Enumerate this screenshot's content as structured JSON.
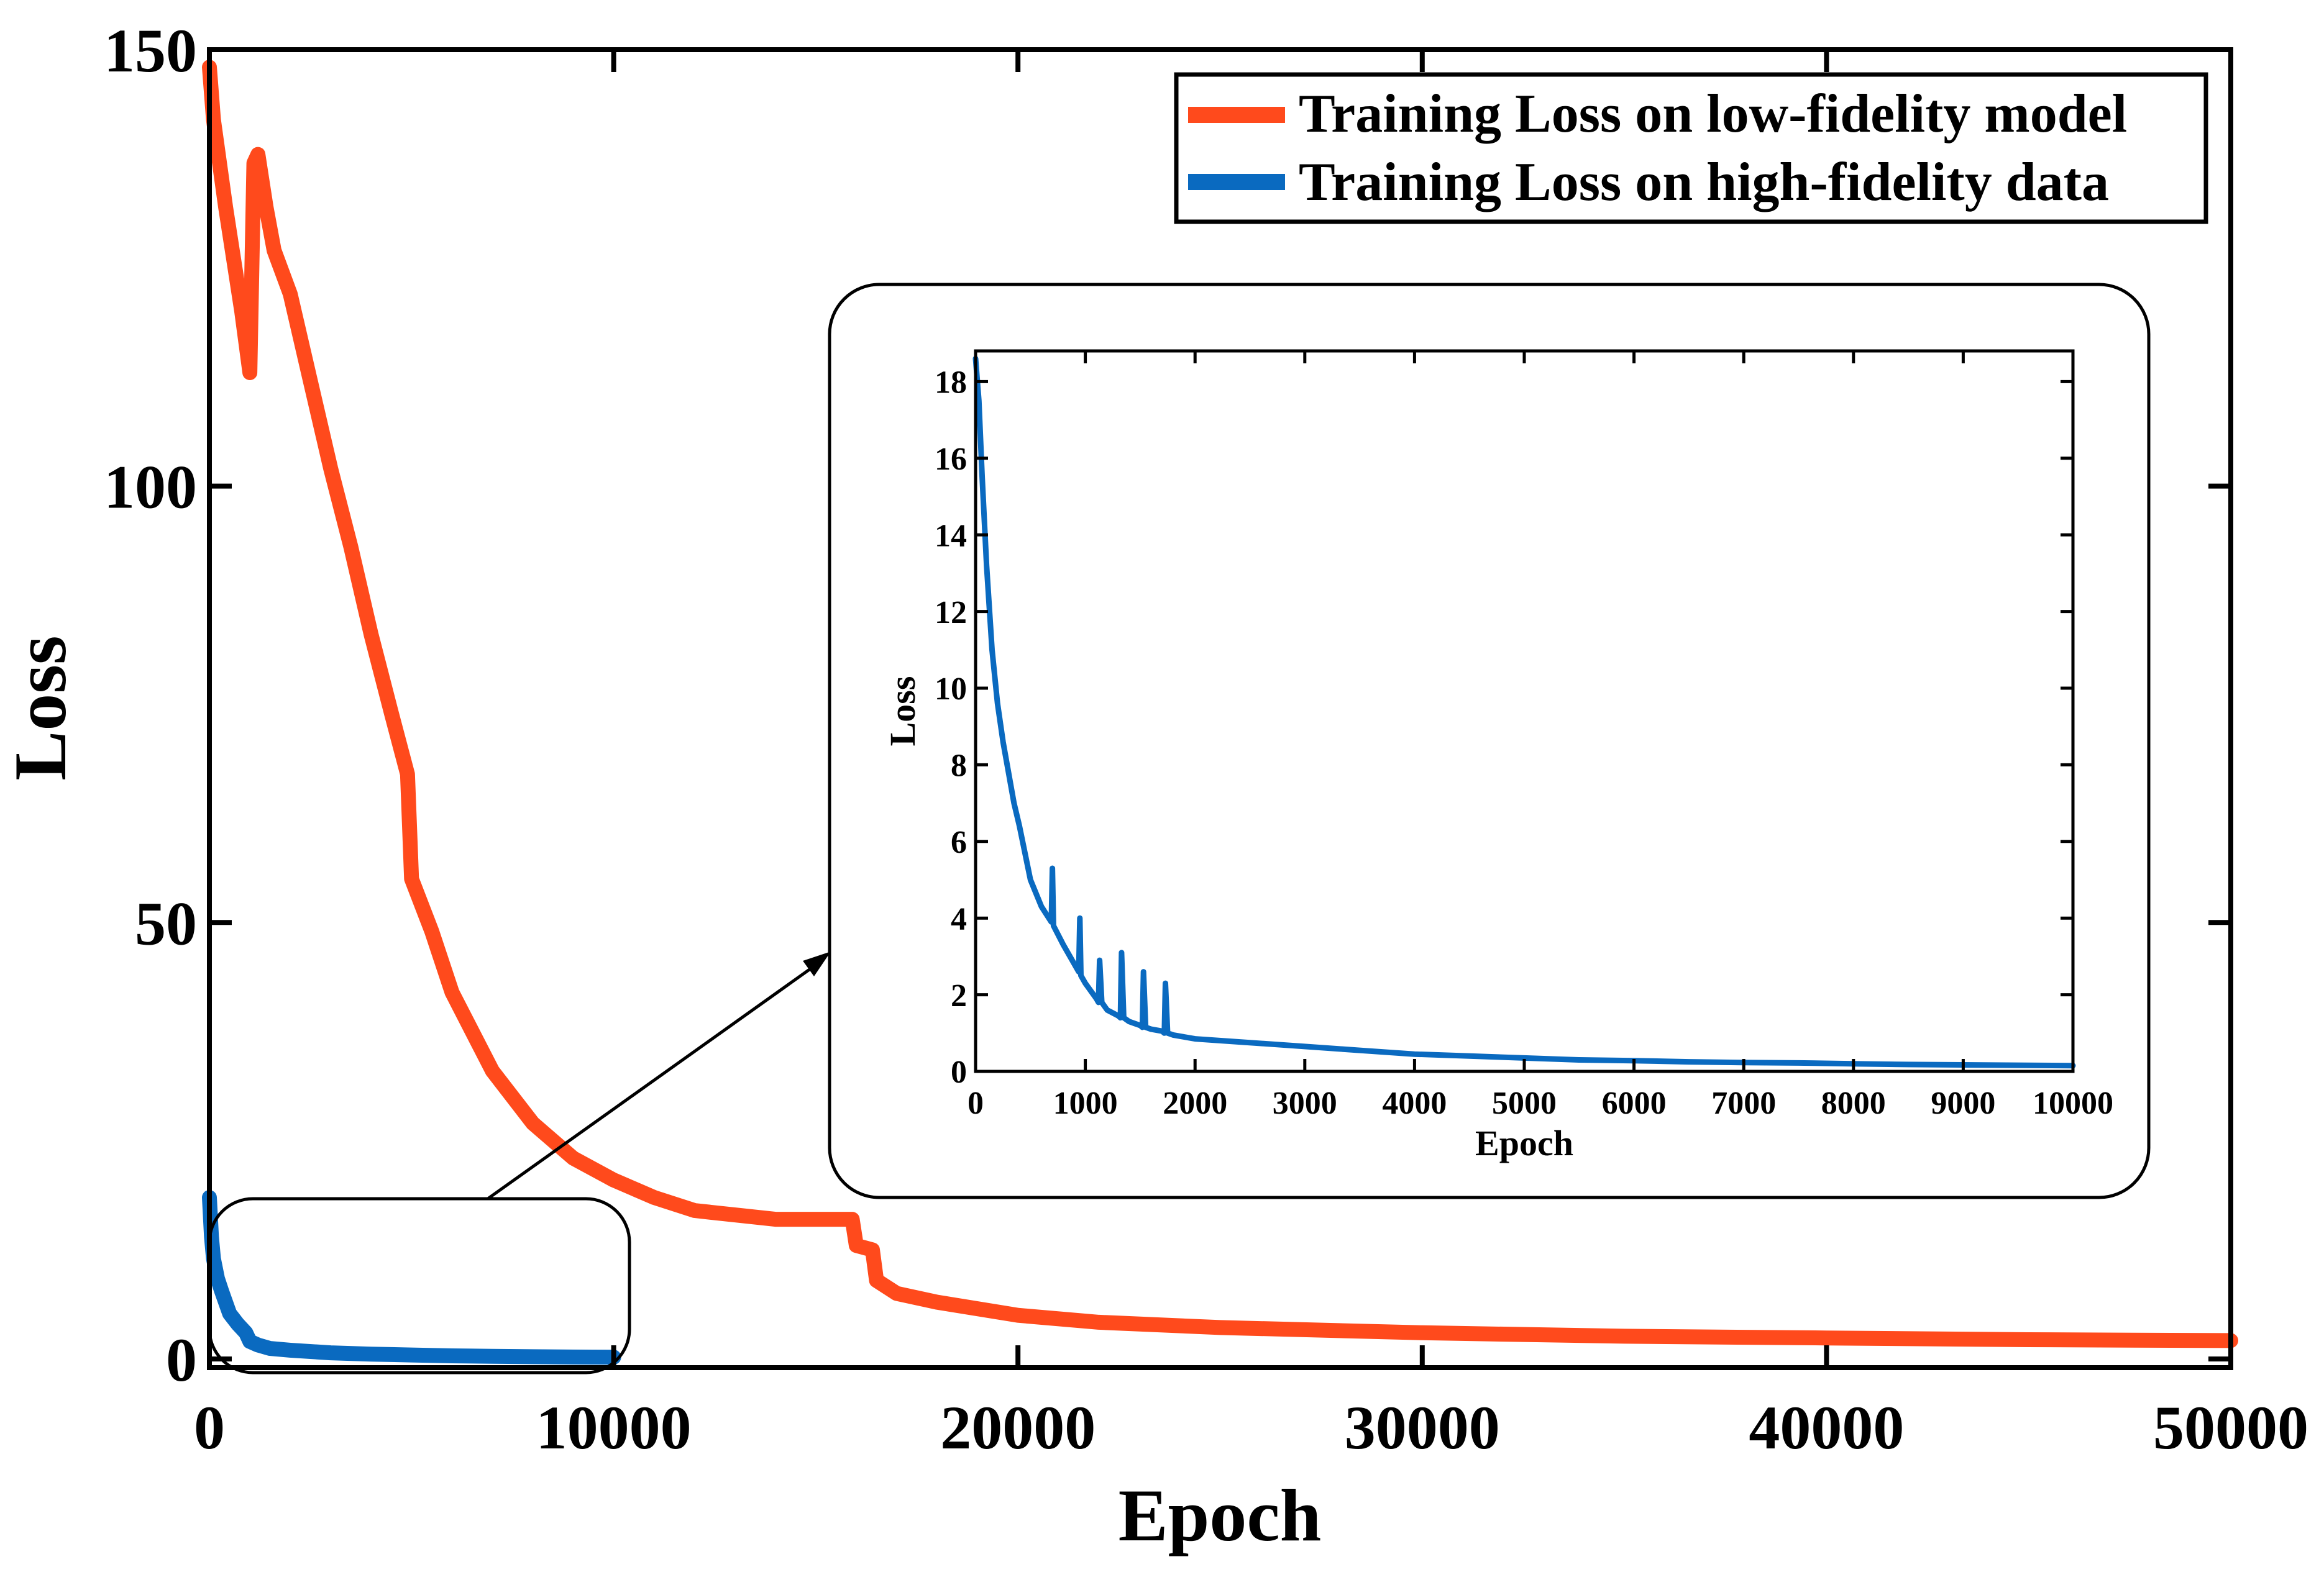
{
  "colors": {
    "low": "#ff4a1c",
    "high": "#0a6ac0",
    "axis": "#000000",
    "background": "#ffffff"
  },
  "chart_data": [
    {
      "type": "line",
      "xlabel": "Epoch",
      "ylabel": "Loss",
      "xlim": [
        0,
        50000
      ],
      "ylim": [
        -1,
        150
      ],
      "xticks": [
        0,
        10000,
        20000,
        30000,
        40000,
        50000
      ],
      "xtick_labels": [
        "0",
        "10000",
        "20000",
        "30000",
        "40000",
        "50000"
      ],
      "yticks": [
        0,
        50,
        100,
        150
      ],
      "ytick_labels": [
        "0",
        "50",
        "100",
        "150"
      ],
      "legend": {
        "placement": "top-right",
        "entries": [
          "Training Loss on low-fidelity model",
          "Training Loss on high-fidelity data"
        ]
      },
      "series": [
        {
          "name": "Training Loss on low-fidelity model",
          "x": [
            0,
            100,
            400,
            800,
            1000,
            1100,
            1200,
            1400,
            1600,
            2000,
            2500,
            3000,
            3500,
            4000,
            4500,
            4900,
            5000,
            5500,
            6000,
            7000,
            8000,
            9000,
            10000,
            11000,
            12000,
            13000,
            14000,
            15000,
            15900,
            16000,
            16400,
            16500,
            17000,
            18000,
            20000,
            22000,
            25000,
            30000,
            35000,
            40000,
            45000,
            50000
          ],
          "y": [
            148,
            142,
            132,
            120,
            113,
            137,
            138,
            132,
            127,
            122,
            112,
            102,
            93,
            83,
            74,
            67,
            55,
            49,
            42,
            33,
            27,
            23,
            20.5,
            18.5,
            17,
            16.5,
            16,
            16,
            16,
            13,
            12.5,
            9,
            7.5,
            6.5,
            5,
            4.2,
            3.6,
            3.0,
            2.6,
            2.4,
            2.2,
            2.1
          ]
        },
        {
          "name": "Training Loss on high-fidelity data",
          "x": [
            0,
            50,
            100,
            200,
            300,
            400,
            500,
            700,
            900,
            1000,
            1200,
            1500,
            2000,
            3000,
            4000,
            5000,
            6000,
            7000,
            8000,
            9000,
            10000
          ],
          "y": [
            18.5,
            14,
            11.5,
            9.2,
            7.8,
            6.5,
            5.2,
            4.0,
            3.0,
            2.0,
            1.6,
            1.2,
            1.0,
            0.7,
            0.55,
            0.45,
            0.35,
            0.3,
            0.25,
            0.22,
            0.2
          ]
        }
      ],
      "annotations": [
        "zoom box around epochs 0-10000",
        "arrow to inset"
      ]
    },
    {
      "type": "line",
      "xlabel": "Epoch",
      "ylabel": "Loss",
      "xlim": [
        0,
        10000
      ],
      "ylim": [
        0,
        18.8
      ],
      "xticks": [
        0,
        1000,
        2000,
        3000,
        4000,
        5000,
        6000,
        7000,
        8000,
        9000,
        10000
      ],
      "xtick_labels": [
        "0",
        "1000",
        "2000",
        "3000",
        "4000",
        "5000",
        "6000",
        "7000",
        "8000",
        "9000",
        "10000"
      ],
      "yticks": [
        0,
        2,
        4,
        6,
        8,
        10,
        12,
        14,
        16,
        18
      ],
      "ytick_labels": [
        "0",
        "2",
        "4",
        "6",
        "8",
        "10",
        "12",
        "14",
        "16",
        "18"
      ],
      "series": [
        {
          "name": "Training Loss on high-fidelity data",
          "x": [
            0,
            30,
            60,
            100,
            150,
            200,
            250,
            300,
            350,
            400,
            500,
            600,
            690,
            700,
            710,
            800,
            900,
            940,
            950,
            960,
            1000,
            1100,
            1120,
            1130,
            1150,
            1200,
            1300,
            1320,
            1330,
            1350,
            1400,
            1500,
            1520,
            1530,
            1550,
            1600,
            1700,
            1720,
            1730,
            1750,
            1800,
            2000,
            2500,
            3000,
            3500,
            4000,
            4500,
            5000,
            5500,
            6000,
            6500,
            7000,
            7500,
            8000,
            8500,
            9000,
            9500,
            10000
          ],
          "y": [
            18.6,
            17.5,
            15.5,
            13.2,
            11.0,
            9.6,
            8.6,
            7.8,
            7.0,
            6.4,
            5.0,
            4.3,
            3.9,
            5.3,
            3.8,
            3.3,
            2.8,
            2.6,
            4.0,
            2.5,
            2.3,
            1.9,
            1.8,
            2.9,
            1.8,
            1.6,
            1.45,
            1.4,
            3.1,
            1.4,
            1.3,
            1.2,
            1.15,
            2.6,
            1.15,
            1.1,
            1.05,
            1.0,
            2.3,
            1.0,
            0.95,
            0.85,
            0.75,
            0.65,
            0.55,
            0.45,
            0.4,
            0.35,
            0.3,
            0.28,
            0.25,
            0.23,
            0.22,
            0.2,
            0.18,
            0.17,
            0.16,
            0.15
          ]
        }
      ]
    }
  ]
}
